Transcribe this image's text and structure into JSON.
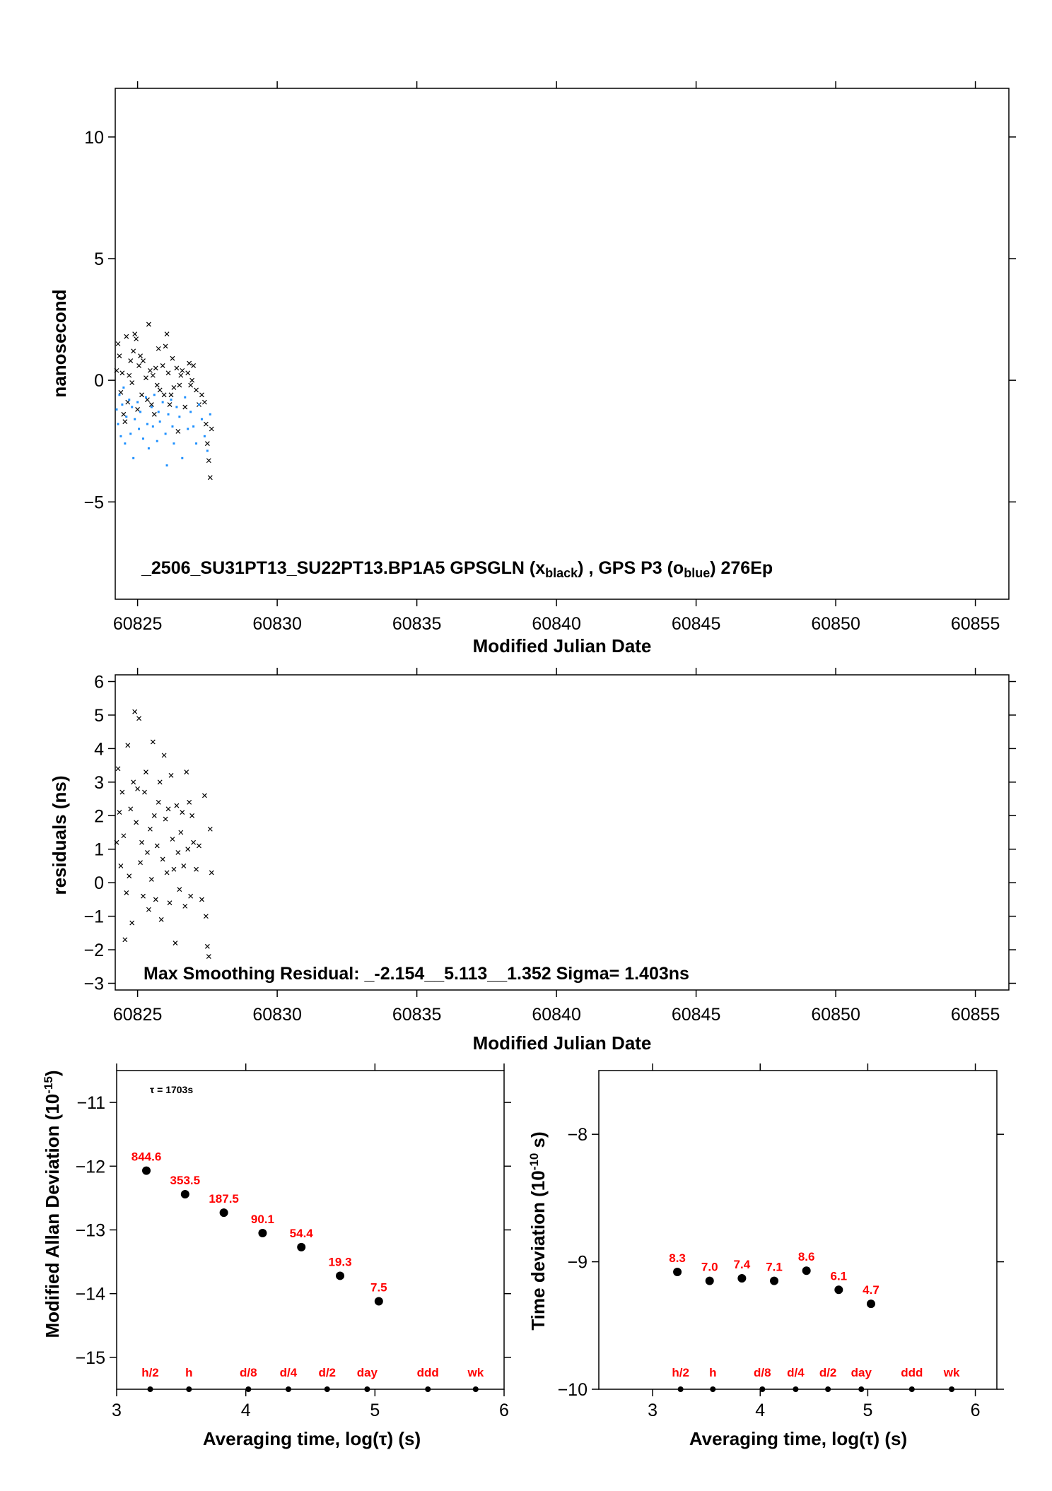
{
  "colors": {
    "gps_gln": "#000000",
    "gps_p3": "#1e90ff",
    "labels": "#ff0000"
  },
  "chart_data": [
    {
      "id": "time_series",
      "type": "scatter",
      "xlabel": "Modified Julian Date",
      "ylabel": "nanosecond",
      "xlim": [
        60824.2,
        60856.2
      ],
      "ylim": [
        -9,
        12
      ],
      "xticks": [
        60825,
        60830,
        60835,
        60840,
        60845,
        60850,
        60855
      ],
      "yticks": [
        -5,
        0,
        5,
        10
      ],
      "annotation": {
        "main": "_2506_SU31PT13_SU22PT13.BP1A5     GPSGLN (x",
        "sub1": "black",
        "mid": ") ,  GPS P3 (o",
        "sub2": "blue",
        "end": ")  276Ep"
      },
      "series": [
        {
          "name": "GPSGLN",
          "marker": "x",
          "color": "#000000",
          "x": [
            60824.25,
            60824.3,
            60824.35,
            60824.4,
            60824.45,
            60824.5,
            60824.55,
            60824.6,
            60824.65,
            60824.7,
            60824.75,
            60824.8,
            60824.85,
            60824.9,
            60824.95,
            60825.0,
            60825.05,
            60825.1,
            60825.15,
            60825.2,
            60825.3,
            60825.35,
            60825.4,
            60825.45,
            60825.5,
            60825.55,
            60825.6,
            60825.65,
            60825.7,
            60825.75,
            60825.8,
            60825.9,
            60825.95,
            60826.0,
            60826.05,
            60826.1,
            60826.15,
            60826.2,
            60826.25,
            60826.3,
            60826.4,
            60826.45,
            60826.5,
            60826.55,
            60826.6,
            60826.7,
            60826.8,
            60826.85,
            60826.9,
            60826.95,
            60827.0,
            60827.1,
            60827.2,
            60827.3,
            60827.4,
            60827.45,
            60827.5,
            60827.55,
            60827.6,
            60827.65
          ],
          "y": [
            0.4,
            1.5,
            1.0,
            -0.5,
            0.3,
            -1.4,
            -1.7,
            1.8,
            -0.9,
            0.2,
            0.8,
            -0.1,
            1.2,
            1.9,
            1.7,
            -1.2,
            0.6,
            1.0,
            -0.6,
            0.8,
            0.1,
            -0.8,
            2.3,
            0.4,
            -1.0,
            0.2,
            -1.4,
            0.5,
            -0.2,
            1.3,
            -0.4,
            0.6,
            -0.6,
            1.4,
            1.9,
            0.3,
            -1.0,
            -0.6,
            0.9,
            -0.3,
            0.5,
            -2.1,
            -0.2,
            0.2,
            0.4,
            -1.1,
            0.3,
            0.7,
            -0.2,
            0.0,
            0.6,
            -0.4,
            -1.0,
            -0.6,
            -0.9,
            -1.8,
            -2.6,
            -3.3,
            -4.0,
            -2.0
          ]
        },
        {
          "name": "GPS P3",
          "marker": "o",
          "color": "#1e90ff",
          "x": [
            60824.25,
            60824.3,
            60824.35,
            60824.4,
            60824.45,
            60824.5,
            60824.55,
            60824.6,
            60824.7,
            60824.75,
            60824.8,
            60824.85,
            60824.9,
            60825.0,
            60825.05,
            60825.1,
            60825.2,
            60825.3,
            60825.35,
            60825.4,
            60825.5,
            60825.55,
            60825.6,
            60825.7,
            60825.75,
            60825.8,
            60825.9,
            60826.0,
            60826.05,
            60826.1,
            60826.2,
            60826.25,
            60826.3,
            60826.4,
            60826.5,
            60826.6,
            60826.7,
            60826.8,
            60826.9,
            60827.0,
            60827.1,
            60827.2,
            60827.3,
            60827.4,
            60827.5,
            60827.6
          ],
          "y": [
            -1.2,
            -1.8,
            -0.6,
            -2.3,
            -1.0,
            -0.3,
            -2.6,
            -1.5,
            -0.8,
            -2.2,
            -1.1,
            -3.2,
            -1.6,
            -0.9,
            -2.0,
            -1.3,
            -2.4,
            -0.7,
            -1.8,
            -2.8,
            -1.1,
            -1.9,
            -0.6,
            -2.5,
            -1.3,
            -1.7,
            -0.9,
            -2.2,
            -3.5,
            -1.4,
            -0.8,
            -1.9,
            -2.6,
            -1.1,
            -1.5,
            -3.2,
            -0.7,
            -2.0,
            -1.3,
            -1.9,
            -2.6,
            -1.0,
            -1.6,
            -2.3,
            -2.9,
            -1.4
          ]
        }
      ]
    },
    {
      "id": "residuals",
      "type": "scatter",
      "xlabel": "Modified Julian Date",
      "ylabel": "residuals (ns)",
      "xlim": [
        60824.2,
        60856.2
      ],
      "ylim": [
        -3.2,
        6.2
      ],
      "xticks": [
        60825,
        60830,
        60835,
        60840,
        60845,
        60850,
        60855
      ],
      "yticks": [
        -3,
        -2,
        -1,
        0,
        1,
        2,
        3,
        4,
        5,
        6
      ],
      "annotation": "Max Smoothing Residual: _-2.154__5.113__1.352  Sigma= 1.403ns",
      "series": [
        {
          "marker": "x",
          "color": "#000000",
          "x": [
            60824.25,
            60824.3,
            60824.35,
            60824.4,
            60824.45,
            60824.5,
            60824.55,
            60824.6,
            60824.65,
            60824.7,
            60824.75,
            60824.8,
            60824.85,
            60824.9,
            60824.95,
            60825.0,
            60825.05,
            60825.1,
            60825.15,
            60825.2,
            60825.25,
            60825.3,
            60825.35,
            60825.4,
            60825.45,
            60825.5,
            60825.55,
            60825.6,
            60825.65,
            60825.7,
            60825.75,
            60825.8,
            60825.85,
            60825.9,
            60825.95,
            60826.0,
            60826.05,
            60826.1,
            60826.15,
            60826.2,
            60826.25,
            60826.3,
            60826.35,
            60826.4,
            60826.45,
            60826.5,
            60826.55,
            60826.6,
            60826.65,
            60826.7,
            60826.75,
            60826.8,
            60826.85,
            60826.9,
            60826.95,
            60827.0,
            60827.1,
            60827.2,
            60827.3,
            60827.4,
            60827.45,
            60827.5,
            60827.55,
            60827.6,
            60827.65
          ],
          "y": [
            1.2,
            3.4,
            2.1,
            0.5,
            2.7,
            1.4,
            -1.7,
            -0.3,
            4.1,
            0.2,
            2.2,
            -1.2,
            3.0,
            5.1,
            1.8,
            2.8,
            4.9,
            0.6,
            1.2,
            -0.4,
            2.7,
            3.3,
            0.9,
            -0.8,
            1.6,
            0.1,
            4.2,
            2.0,
            -0.5,
            1.1,
            2.4,
            3.0,
            -1.1,
            0.7,
            3.8,
            1.9,
            0.3,
            2.2,
            -0.6,
            3.2,
            1.3,
            0.4,
            -1.8,
            2.3,
            0.9,
            -0.2,
            1.5,
            2.1,
            0.5,
            -0.7,
            3.3,
            1.0,
            2.4,
            -0.4,
            2.0,
            1.2,
            0.4,
            1.1,
            -0.5,
            2.6,
            -1.0,
            -1.9,
            -2.2,
            1.6,
            0.3
          ]
        }
      ]
    },
    {
      "id": "mdev",
      "type": "scatter",
      "xlabel_pre": "Averaging time, log(",
      "xlabel_tau": "τ",
      "xlabel_post": ") (s)",
      "ylabel_pre": "Modified Allan Deviation (10",
      "ylabel_sup": "-15",
      "ylabel_post": ")",
      "tau_note": "τ = 1703s",
      "xlim": [
        3,
        6
      ],
      "ylim": [
        -15.5,
        -10.5
      ],
      "xticks": [
        3,
        4,
        5,
        6
      ],
      "yticks": [
        -15,
        -14,
        -13,
        -12,
        -11
      ],
      "points": [
        {
          "x": 3.23,
          "y": -12.07,
          "label": "844.6"
        },
        {
          "x": 3.53,
          "y": -12.44,
          "label": "353.5"
        },
        {
          "x": 3.83,
          "y": -12.73,
          "label": "187.5"
        },
        {
          "x": 4.13,
          "y": -13.05,
          "label": "90.1"
        },
        {
          "x": 4.43,
          "y": -13.27,
          "label": "54.4"
        },
        {
          "x": 4.73,
          "y": -13.72,
          "label": "19.3"
        },
        {
          "x": 5.03,
          "y": -14.12,
          "label": "7.5"
        }
      ],
      "markers": [
        {
          "x": 3.26,
          "label": "h/2"
        },
        {
          "x": 3.56,
          "label": "h"
        },
        {
          "x": 4.02,
          "label": "d/8"
        },
        {
          "x": 4.33,
          "label": "d/4"
        },
        {
          "x": 4.63,
          "label": "d/2"
        },
        {
          "x": 4.94,
          "label": "day"
        },
        {
          "x": 5.41,
          "label": "ddd"
        },
        {
          "x": 5.78,
          "label": "wk"
        }
      ]
    },
    {
      "id": "tdev",
      "type": "scatter",
      "xlabel_pre": "Averaging time, log(",
      "xlabel_tau": "τ",
      "xlabel_post": ") (s)",
      "ylabel_pre": "Time deviation (10",
      "ylabel_sup": "-10",
      "ylabel_post": " s)",
      "xlim": [
        2.5,
        6.2
      ],
      "ylim": [
        -10,
        -7.5
      ],
      "xticks": [
        3,
        4,
        5,
        6
      ],
      "yticks": [
        -10,
        -9,
        -8
      ],
      "points": [
        {
          "x": 3.23,
          "y": -9.08,
          "label": "8.3"
        },
        {
          "x": 3.53,
          "y": -9.15,
          "label": "7.0"
        },
        {
          "x": 3.83,
          "y": -9.13,
          "label": "7.4"
        },
        {
          "x": 4.13,
          "y": -9.15,
          "label": "7.1"
        },
        {
          "x": 4.43,
          "y": -9.07,
          "label": "8.6"
        },
        {
          "x": 4.73,
          "y": -9.22,
          "label": "6.1"
        },
        {
          "x": 5.03,
          "y": -9.33,
          "label": "4.7"
        }
      ],
      "markers": [
        {
          "x": 3.26,
          "label": "h/2"
        },
        {
          "x": 3.56,
          "label": "h"
        },
        {
          "x": 4.02,
          "label": "d/8"
        },
        {
          "x": 4.33,
          "label": "d/4"
        },
        {
          "x": 4.63,
          "label": "d/2"
        },
        {
          "x": 4.94,
          "label": "day"
        },
        {
          "x": 5.41,
          "label": "ddd"
        },
        {
          "x": 5.78,
          "label": "wk"
        }
      ]
    }
  ]
}
